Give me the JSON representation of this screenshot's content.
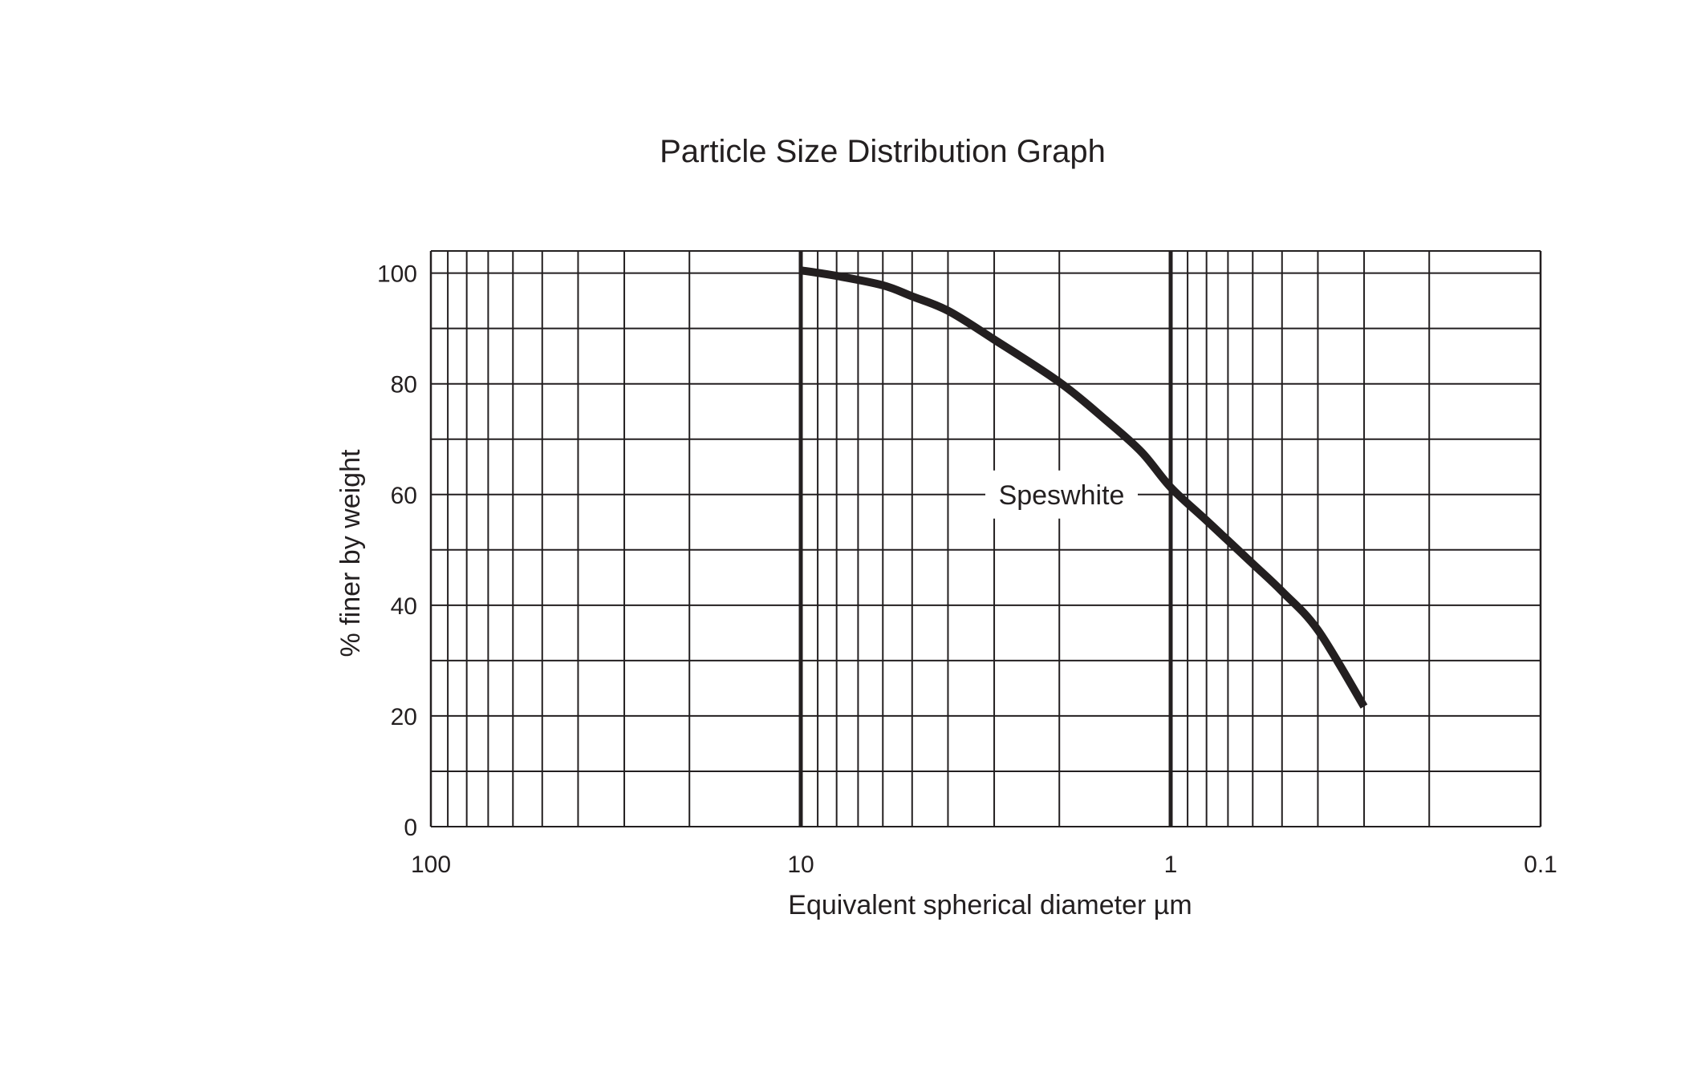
{
  "chart_data": {
    "type": "line",
    "title": "Particle Size Distribution Graph",
    "xlabel": "Equivalent spherical diameter µm",
    "ylabel": "% finer by weight",
    "x_scale": "log",
    "x_reversed": true,
    "xlim": [
      100,
      0.1
    ],
    "ylim": [
      0,
      104
    ],
    "grid": true,
    "x_ticks": [
      {
        "value": 100,
        "label": "100"
      },
      {
        "value": 10,
        "label": "10"
      },
      {
        "value": 1,
        "label": "1"
      },
      {
        "value": 0.1,
        "label": "0.1"
      }
    ],
    "y_ticks": [
      {
        "value": 0,
        "label": "0"
      },
      {
        "value": 20,
        "label": "20"
      },
      {
        "value": 40,
        "label": "40"
      },
      {
        "value": 60,
        "label": "60"
      },
      {
        "value": 80,
        "label": "80"
      },
      {
        "value": 100,
        "label": "100"
      }
    ],
    "y_gridlines": [
      0,
      10,
      20,
      30,
      40,
      50,
      60,
      70,
      80,
      90,
      100
    ],
    "series": [
      {
        "name": "Speswhite",
        "color": "#231f20",
        "x": [
          10,
          8,
          6,
          5,
          4,
          3,
          2,
          1.5,
          1.2,
          1,
          0.8,
          0.6,
          0.5,
          0.4,
          0.3
        ],
        "y": [
          100.5,
          99.5,
          97.8,
          95.8,
          93.2,
          88,
          80.3,
          73.5,
          67.7,
          61.3,
          55.3,
          47.5,
          42.5,
          35.5,
          21.7
        ]
      }
    ]
  }
}
